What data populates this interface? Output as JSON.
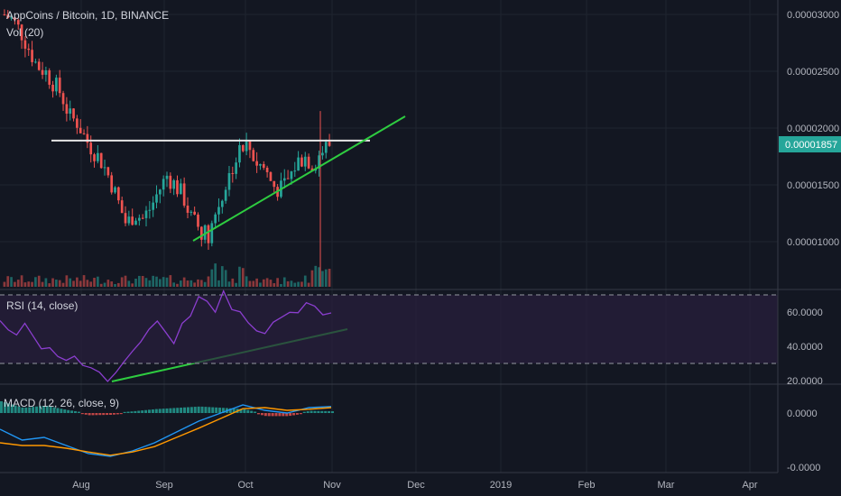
{
  "header": {
    "symbol_title": "AppCoins / Bitcoin, 1D, BINANCE",
    "volume_label": "Vol (20)",
    "rsi_label": "RSI (14, close)",
    "macd_label": "MACD (12, 26, close, 9)"
  },
  "colors": {
    "background": "#131722",
    "grid": "#1f2430",
    "axis_text": "#b2b5be",
    "up_candle": "#26a69a",
    "down_candle": "#ef5350",
    "rsi_line": "#8b3ecf",
    "rsi_band": "#2a1f3d",
    "macd_line": "#2196f3",
    "signal_line": "#ff9800",
    "trendline": "#2ecc40",
    "resistance": "#e6e6e6",
    "price_badge": "#26a69a"
  },
  "price_badge": "0.00001857",
  "chart_data": [
    {
      "type": "candlestick",
      "title": "AppCoins / Bitcoin, 1D, BINANCE",
      "x_ticks": [
        "Aug",
        "Sep",
        "Oct",
        "Nov",
        "Dec",
        "2019",
        "Feb",
        "Mar",
        "Apr"
      ],
      "y_ticks": [
        "0.00003000",
        "0.00002500",
        "0.00002000",
        "0.00001500",
        "0.00001000"
      ],
      "ylim": [
        6.8e-06,
        3.05e-05
      ],
      "last_price": 1.857e-05,
      "close_series": [
        3e-05,
        2.95e-05,
        2.85e-05,
        2.7e-05,
        2.55e-05,
        2.5e-05,
        2.4e-05,
        2.3e-05,
        2.1e-05,
        2.05e-05,
        1.9e-05,
        1.8e-05,
        1.7e-05,
        1.55e-05,
        1.35e-05,
        1.15e-05,
        1.25e-05,
        1.2e-05,
        1.3e-05,
        1.45e-05,
        1.58e-05,
        1.5e-05,
        1.4e-05,
        1.2e-05,
        1.12e-05,
        1.05e-05,
        1.25e-05,
        1.45e-05,
        1.65e-05,
        1.8e-05,
        1.85e-05,
        1.7e-05,
        1.65e-05,
        1.5e-05,
        1.45e-05,
        1.55e-05,
        1.7e-05,
        1.75e-05,
        1.68e-05,
        1.8e-05,
        1.85e-05
      ],
      "annotations": {
        "resistance_level": 1.89e-05,
        "support_trendline": [
          [
            1.01e-05,
            "Sep 13"
          ],
          [
            2.08e-05,
            "Nov 15"
          ]
        ]
      }
    },
    {
      "type": "bar",
      "title": "Vol (20)",
      "description_values": "volume histogram under price"
    },
    {
      "type": "line",
      "title": "RSI (14, close)",
      "y_ticks": [
        "60.0000",
        "40.0000",
        "20.0000"
      ],
      "ylim": [
        18,
        74
      ],
      "levels": [
        70,
        30
      ],
      "values": [
        55,
        50,
        48,
        52,
        45,
        40,
        38,
        36,
        32,
        33,
        31,
        28,
        26,
        22,
        25,
        30,
        38,
        45,
        50,
        55,
        48,
        44,
        52,
        58,
        68,
        65,
        62,
        70,
        60,
        58,
        55,
        50,
        48,
        52,
        56,
        58,
        60,
        66,
        62,
        60,
        58
      ],
      "annotations": {
        "support_trendline": [
          [
            21,
            "Aug 15"
          ],
          [
            50,
            "Nov 15"
          ]
        ]
      }
    },
    {
      "type": "line",
      "title": "MACD (12, 26, close, 9)",
      "y_ticks": [
        "0.0000",
        "-0.0000"
      ],
      "series": [
        {
          "values": [
            -0.3,
            -0.5,
            -0.45,
            -0.6,
            -0.75,
            -0.8,
            -0.7,
            -0.55,
            -0.35,
            -0.15,
            0.0,
            0.15,
            0.05,
            0.0,
            0.1,
            0.12
          ]
        },
        {
          "values": [
            -0.55,
            -0.6,
            -0.6,
            -0.65,
            -0.72,
            -0.78,
            -0.72,
            -0.62,
            -0.45,
            -0.28,
            -0.1,
            0.08,
            0.1,
            0.05,
            0.07,
            0.1
          ]
        }
      ]
    }
  ]
}
